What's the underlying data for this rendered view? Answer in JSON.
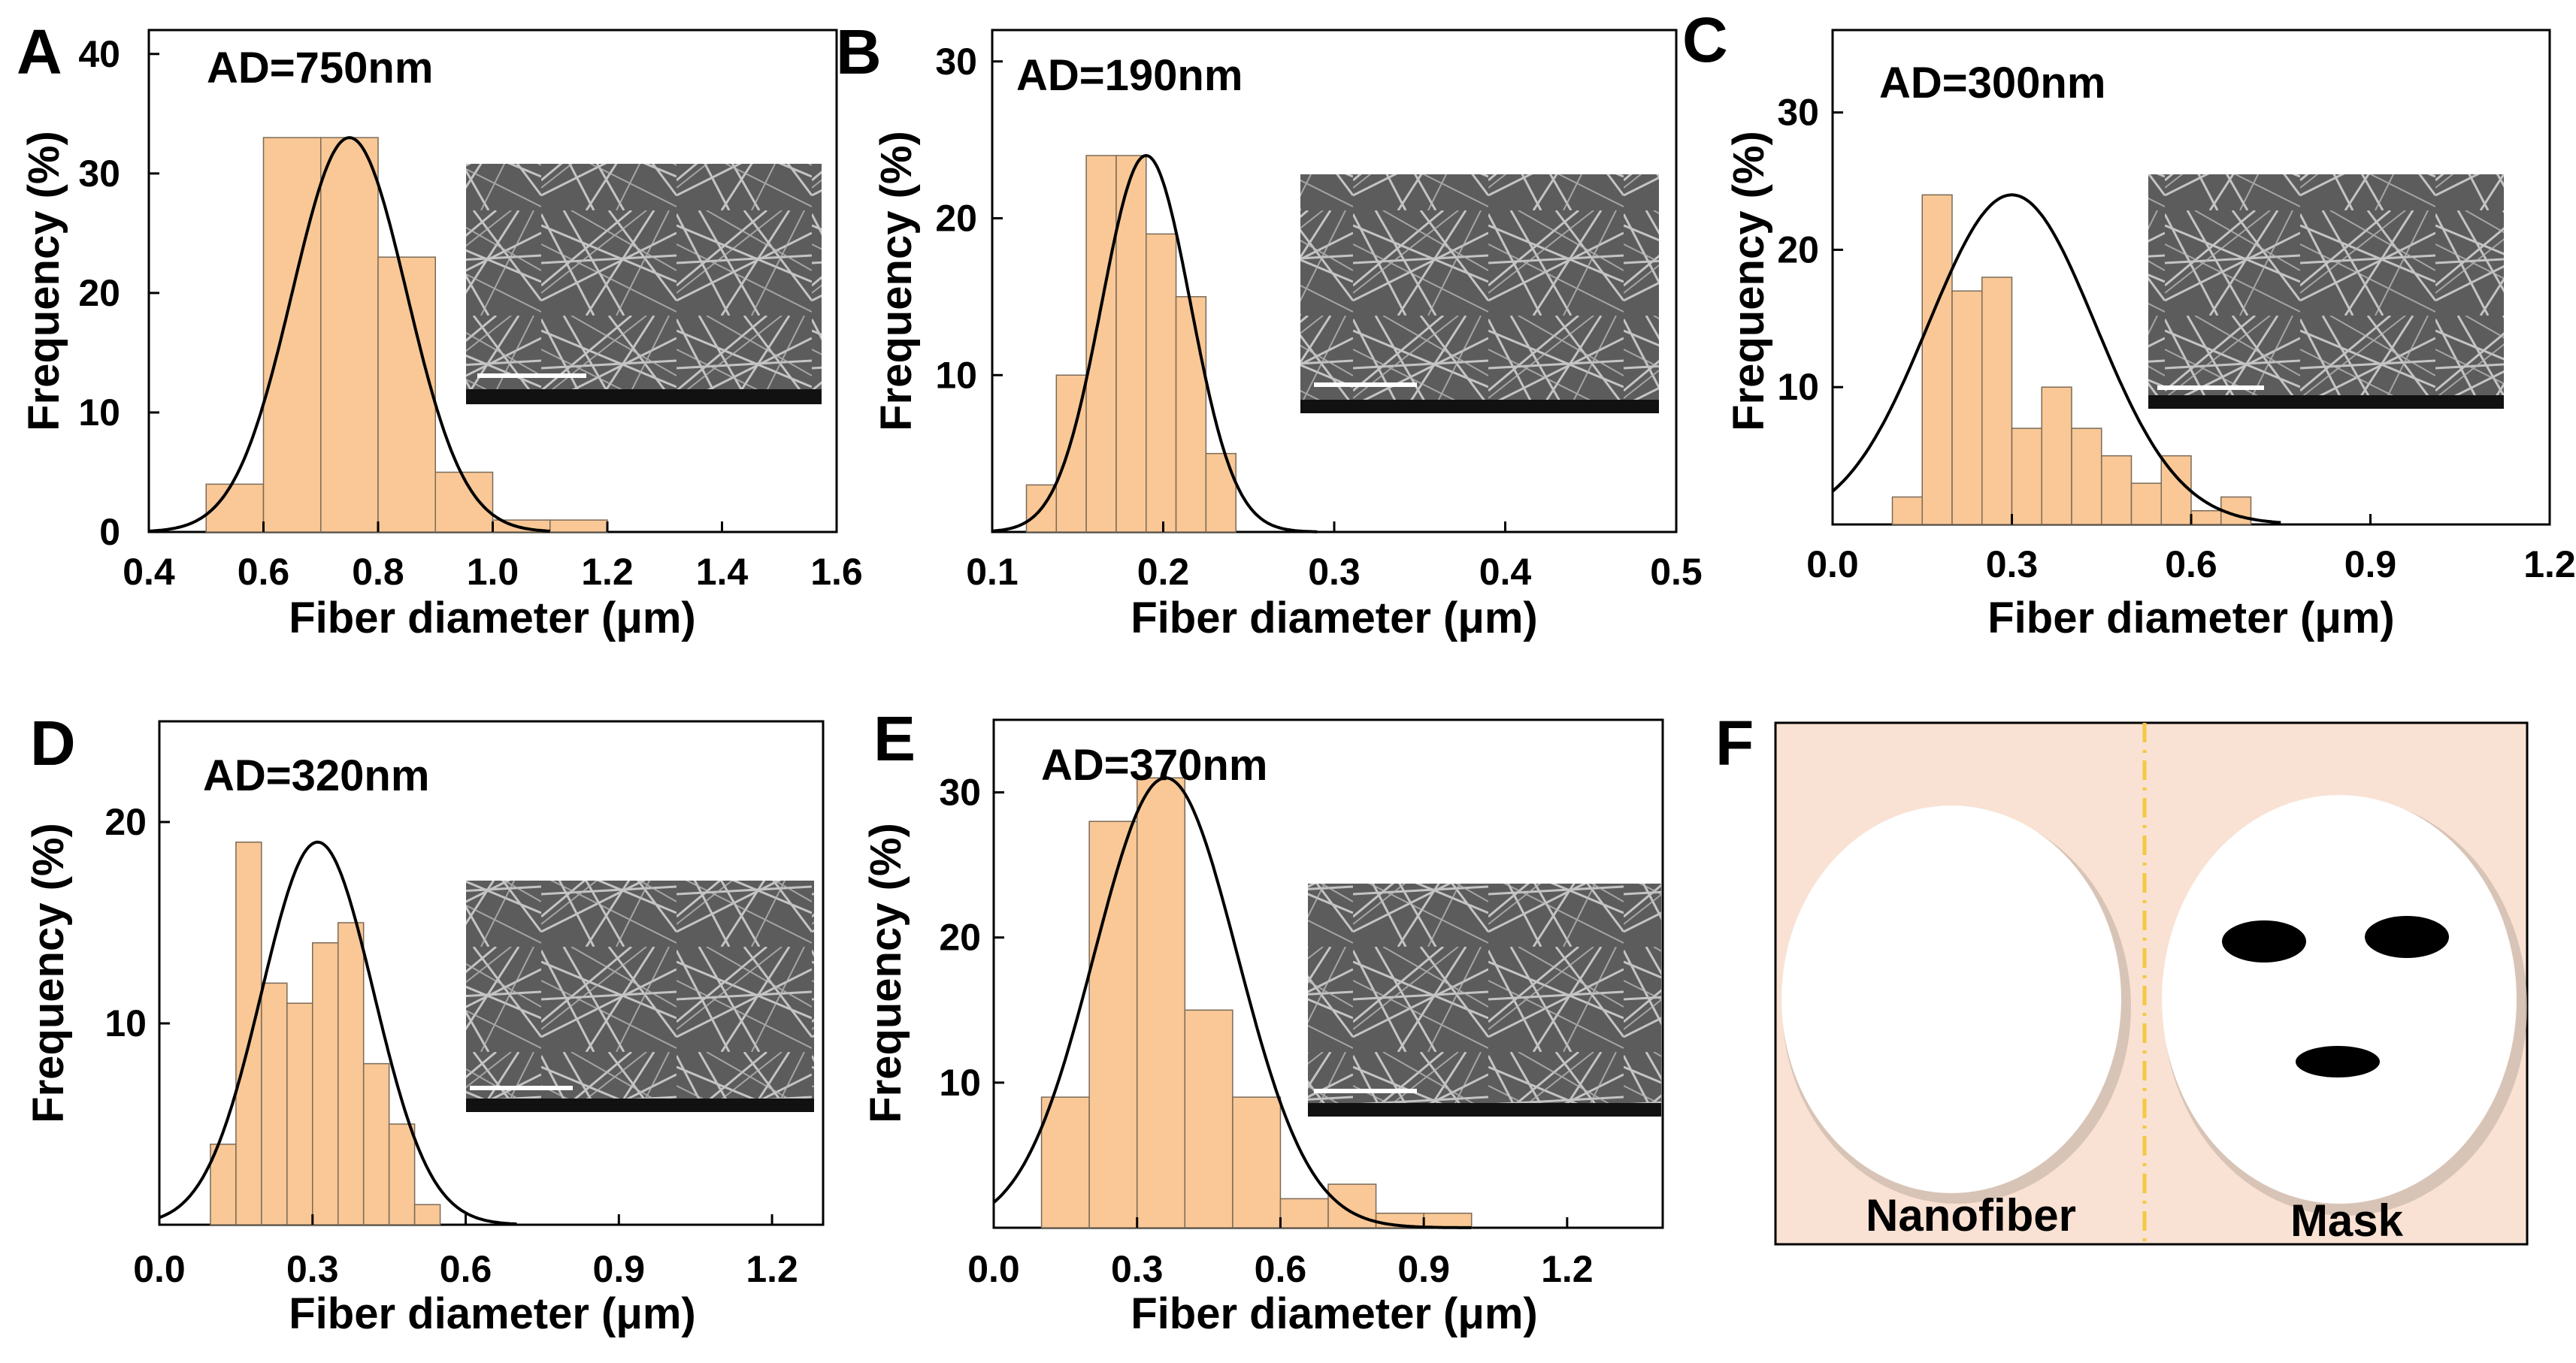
{
  "chart_data": [
    {
      "type": "bar",
      "panel": "A",
      "annotation": "AD=750nm",
      "xlabel": "Fiber diameter (μm)",
      "ylabel": "Frequency (%)",
      "xlim": [
        0.4,
        1.6
      ],
      "ylim": [
        0,
        42
      ],
      "xticks": [
        "0.4",
        "0.6",
        "0.8",
        "1.0",
        "1.2",
        "1.4",
        "1.6"
      ],
      "yticks": [
        "0",
        "10",
        "20",
        "30",
        "40"
      ],
      "bin_start": 0.5,
      "bin_width": 0.1,
      "values": [
        4,
        33,
        33,
        23,
        5,
        1,
        1
      ],
      "fit": {
        "type": "gaussian",
        "mean": 0.75,
        "sd": 0.1,
        "peak": 33,
        "range": [
          0.4,
          1.1
        ]
      },
      "inset": "SEM micrograph"
    },
    {
      "type": "bar",
      "panel": "B",
      "annotation": "AD=190nm",
      "xlabel": "Fiber diameter (μm)",
      "ylabel": "Frequency (%)",
      "xlim": [
        0.1,
        0.5
      ],
      "ylim": [
        0,
        32
      ],
      "xticks": [
        "0.1",
        "0.2",
        "0.3",
        "0.4",
        "0.5"
      ],
      "yticks": [
        "10",
        "20",
        "30"
      ],
      "bin_start": 0.12,
      "bin_width": 0.0175,
      "values": [
        3,
        10,
        24,
        24,
        19,
        15,
        5
      ],
      "fit": {
        "type": "gaussian",
        "mean": 0.19,
        "sd": 0.026,
        "peak": 24,
        "range": [
          0.1,
          0.29
        ]
      },
      "inset": "SEM micrograph"
    },
    {
      "type": "bar",
      "panel": "C",
      "annotation": "AD=300nm",
      "xlabel": "Fiber diameter (μm)",
      "ylabel": "Frequency (%)",
      "xlim": [
        0.0,
        1.2
      ],
      "ylim": [
        0,
        36
      ],
      "xticks": [
        "0.0",
        "0.3",
        "0.6",
        "0.9",
        "1.2"
      ],
      "yticks": [
        "10",
        "20",
        "30"
      ],
      "bin_start": 0.1,
      "bin_width": 0.05,
      "values": [
        2,
        24,
        17,
        18,
        7,
        10,
        7,
        5,
        3,
        5,
        1,
        2
      ],
      "fit": {
        "type": "gaussian",
        "mean": 0.3,
        "sd": 0.14,
        "peak": 24,
        "range": [
          0.0,
          0.75
        ]
      },
      "inset": "SEM micrograph"
    },
    {
      "type": "bar",
      "panel": "D",
      "annotation": "AD=320nm",
      "xlabel": "Fiber diameter (μm)",
      "ylabel": "Frequency (%)",
      "xlim": [
        0.0,
        1.3
      ],
      "ylim": [
        0,
        25
      ],
      "xticks": [
        "0.0",
        "0.3",
        "0.6",
        "0.9",
        "1.2"
      ],
      "yticks": [
        "10",
        "20"
      ],
      "bin_start": 0.1,
      "bin_width": 0.05,
      "values": [
        4,
        19,
        12,
        11,
        14,
        15,
        8,
        5,
        1
      ],
      "fit": {
        "type": "gaussian",
        "mean": 0.31,
        "sd": 0.11,
        "peak": 19,
        "range": [
          0.0,
          0.7
        ]
      },
      "inset": "SEM micrograph"
    },
    {
      "type": "bar",
      "panel": "E",
      "annotation": "AD=370nm",
      "xlabel": "Fiber diameter (μm)",
      "ylabel": "Frequency (%)",
      "xlim": [
        0.0,
        1.4
      ],
      "ylim": [
        0,
        35
      ],
      "xticks": [
        "0.0",
        "0.3",
        "0.6",
        "0.9",
        "1.2"
      ],
      "yticks": [
        "10",
        "20",
        "30"
      ],
      "bin_start": 0.1,
      "bin_width": 0.1,
      "values": [
        9,
        28,
        31,
        15,
        9,
        2,
        3,
        1,
        1
      ],
      "fit": {
        "type": "gaussian",
        "mean": 0.36,
        "sd": 0.15,
        "peak": 31,
        "range": [
          0.0,
          1.0
        ]
      },
      "inset": "SEM micrograph"
    }
  ],
  "panels": {
    "A": "A",
    "B": "B",
    "C": "C",
    "D": "D",
    "E": "E",
    "F": "F"
  },
  "panel_f": {
    "left_label": "Nanofiber",
    "right_label": "Mask"
  },
  "colors": {
    "bar_fill": "#f9c896",
    "bar_stroke": "#7a6a58",
    "fit_line": "#000000",
    "mask_bg": "#f9e2d3",
    "divider": "#f5c842",
    "sem_bg": "#5a5a5a"
  }
}
